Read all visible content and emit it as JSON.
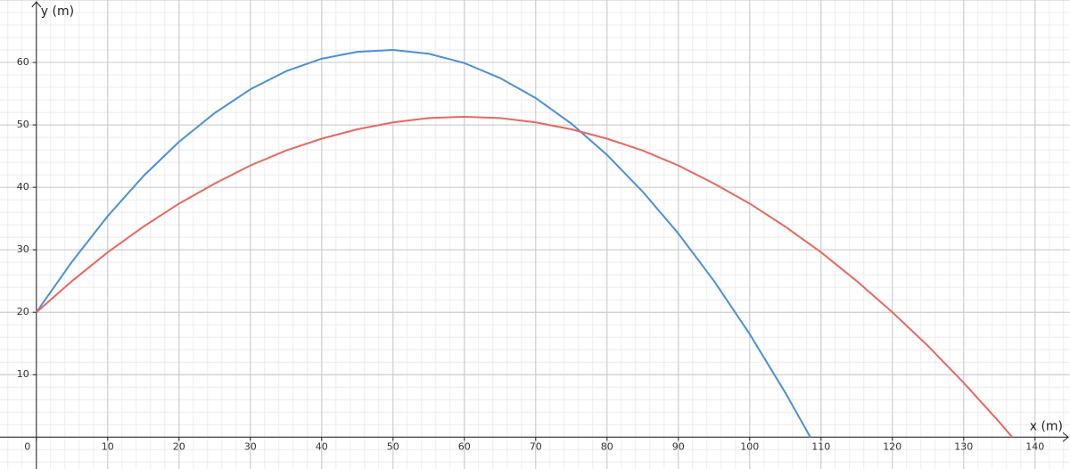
{
  "chart_data": {
    "type": "line",
    "x_label": "x (m)",
    "y_label": "y (m)",
    "xlim": [
      -5.1,
      144.9
    ],
    "ylim": [
      -5.1,
      70
    ],
    "xticks": [
      0,
      10,
      20,
      30,
      40,
      50,
      60,
      70,
      80,
      90,
      100,
      110,
      120,
      130,
      140
    ],
    "yticks": [
      10,
      20,
      30,
      40,
      50,
      60
    ],
    "grid": true,
    "series": [
      {
        "color": "#4a90d9",
        "x": [
          0,
          5,
          10,
          15,
          20,
          25,
          30,
          35,
          40,
          45,
          50,
          55,
          60,
          65,
          70,
          75,
          80,
          85,
          90,
          95,
          100,
          105,
          108.5
        ],
        "values": [
          20,
          28.1,
          35.4,
          41.8,
          47.3,
          51.9,
          55.7,
          58.6,
          60.6,
          61.7,
          62.0,
          61.4,
          59.9,
          57.5,
          54.3,
          50.2,
          45.2,
          39.3,
          32.6,
          25.0,
          16.5,
          7.1,
          0
        ]
      },
      {
        "color": "#e8685f",
        "x": [
          0,
          5,
          10,
          15,
          20,
          25,
          30,
          35,
          40,
          45,
          50,
          55,
          60,
          65,
          70,
          75,
          80,
          85,
          90,
          95,
          100,
          105,
          110,
          115,
          120,
          125,
          130,
          135,
          136.8
        ],
        "values": [
          20,
          25.0,
          29.6,
          33.7,
          37.4,
          40.6,
          43.5,
          45.9,
          47.8,
          49.3,
          50.4,
          51.1,
          51.3,
          51.1,
          50.4,
          49.3,
          47.8,
          45.9,
          43.5,
          40.6,
          37.4,
          33.7,
          29.6,
          25.0,
          20,
          14.6,
          8.7,
          2.4,
          0
        ]
      }
    ]
  }
}
